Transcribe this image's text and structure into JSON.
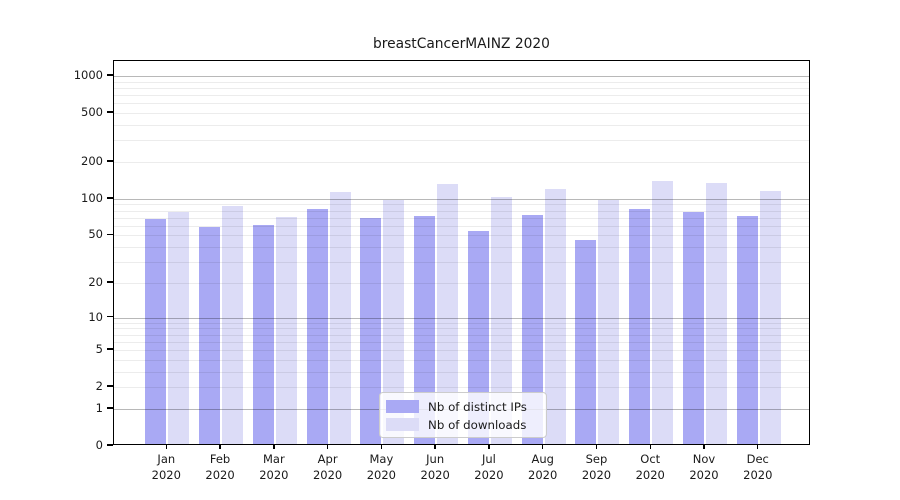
{
  "title": "breastCancerMAINZ 2020",
  "legend": {
    "items": [
      {
        "label": "Nb of distinct IPs",
        "color": "#a9a9f4"
      },
      {
        "label": "Nb of downloads",
        "color": "#dcdcf7"
      }
    ]
  },
  "colors": {
    "bar_dark": "#a9a9f4",
    "bar_light": "#dcdcf7",
    "grid_major": "#b3b3b3",
    "grid_minor": "#e8e8e8",
    "axis": "#000000",
    "background": "#ffffff"
  },
  "chart_data": {
    "type": "bar",
    "title": "breastCancerMAINZ 2020",
    "categories": [
      "Jan 2020",
      "Feb 2020",
      "Mar 2020",
      "Apr 2020",
      "May 2020",
      "Jun 2020",
      "Jul 2020",
      "Aug 2020",
      "Sep 2020",
      "Oct 2020",
      "Nov 2020",
      "Dec 2020"
    ],
    "series": [
      {
        "name": "Nb of distinct IPs",
        "color": "#a9a9f4",
        "values": [
          68,
          58,
          60,
          82,
          69,
          72,
          54,
          73,
          45,
          82,
          77,
          72
        ]
      },
      {
        "name": "Nb of downloads",
        "color": "#dcdcf7",
        "values": [
          78,
          86,
          71,
          112,
          97,
          130,
          102,
          120,
          97,
          140,
          133,
          116
        ]
      }
    ],
    "xlabel": "",
    "ylabel": "",
    "yscale": "log1p",
    "ylim": [
      0,
      1320
    ],
    "y_ticks": [
      1000,
      500,
      200,
      100,
      50,
      20,
      10,
      5,
      2,
      1,
      0
    ],
    "grid": {
      "on": true,
      "major_lines_at": [
        1,
        10,
        100,
        1000
      ],
      "minor_lines_at": [
        2,
        3,
        4,
        5,
        6,
        7,
        8,
        9,
        20,
        30,
        40,
        50,
        60,
        70,
        80,
        90,
        200,
        300,
        400,
        500,
        600,
        700,
        800,
        900
      ]
    },
    "legend_position": "lower center"
  }
}
